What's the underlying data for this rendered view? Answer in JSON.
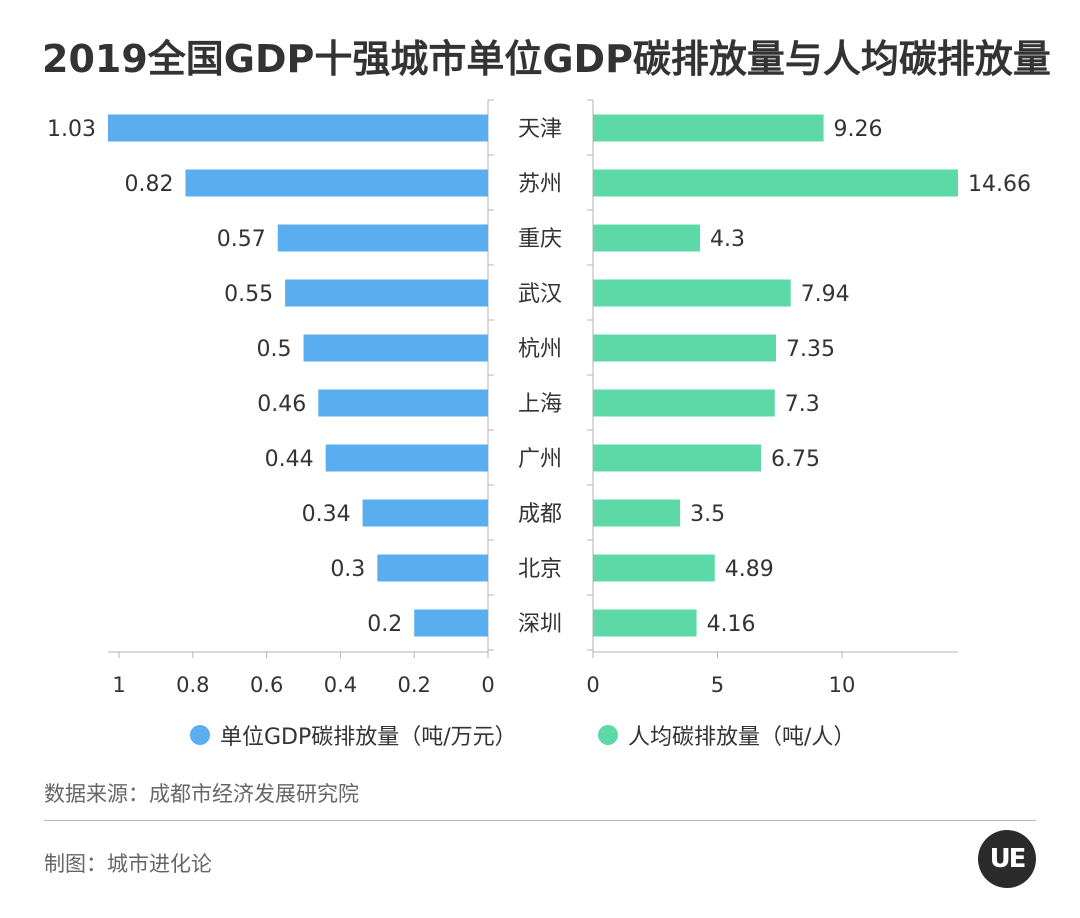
{
  "title": "2019全国GDP十强城市单位GDP碳排放量与人均碳排放量",
  "chart_data": {
    "type": "bar",
    "orientation": "horizontal",
    "layout": "butterfly",
    "categories": [
      "天津",
      "苏州",
      "重庆",
      "武汉",
      "杭州",
      "上海",
      "广州",
      "成都",
      "北京",
      "深圳"
    ],
    "series": [
      {
        "name": "单位GDP碳排放量（吨/万元）",
        "values": [
          1.03,
          0.82,
          0.57,
          0.55,
          0.5,
          0.46,
          0.44,
          0.34,
          0.3,
          0.2
        ],
        "value_labels": [
          "1.03",
          "0.82",
          "0.57",
          "0.55",
          "0.5",
          "0.46",
          "0.44",
          "0.34",
          "0.3",
          "0.2"
        ],
        "color": "#5aaef0",
        "axis_range": [
          0,
          1.03
        ],
        "ticks": [
          1,
          0.8,
          0.6,
          0.4,
          0.2,
          0
        ],
        "tick_labels": [
          "1",
          "0.8",
          "0.6",
          "0.4",
          "0.2",
          "0"
        ],
        "direction": "left"
      },
      {
        "name": "人均碳排放量（吨/人）",
        "values": [
          9.26,
          14.66,
          4.3,
          7.94,
          7.35,
          7.3,
          6.75,
          3.5,
          4.89,
          4.16
        ],
        "value_labels": [
          "9.26",
          "14.66",
          "4.3",
          "7.94",
          "7.35",
          "7.3",
          "6.75",
          "3.5",
          "4.89",
          "4.16"
        ],
        "color": "#5dd9a8",
        "axis_range": [
          0,
          14.66
        ],
        "ticks": [
          0,
          5,
          10
        ],
        "tick_labels": [
          "0",
          "5",
          "10"
        ],
        "direction": "right"
      }
    ],
    "legend": "bottom-center"
  },
  "legend": {
    "left_label": "单位GDP碳排放量（吨/万元）",
    "right_label": "人均碳排放量（吨/人）",
    "left_color": "#5aaef0",
    "right_color": "#5dd9a8"
  },
  "footer": {
    "source": "数据来源：成都市经济发展研究院",
    "maker": "制图：城市进化论",
    "logo_text": "UE"
  },
  "colors": {
    "axis": "#b3b3b3",
    "text": "#333333",
    "muted": "#666666"
  }
}
